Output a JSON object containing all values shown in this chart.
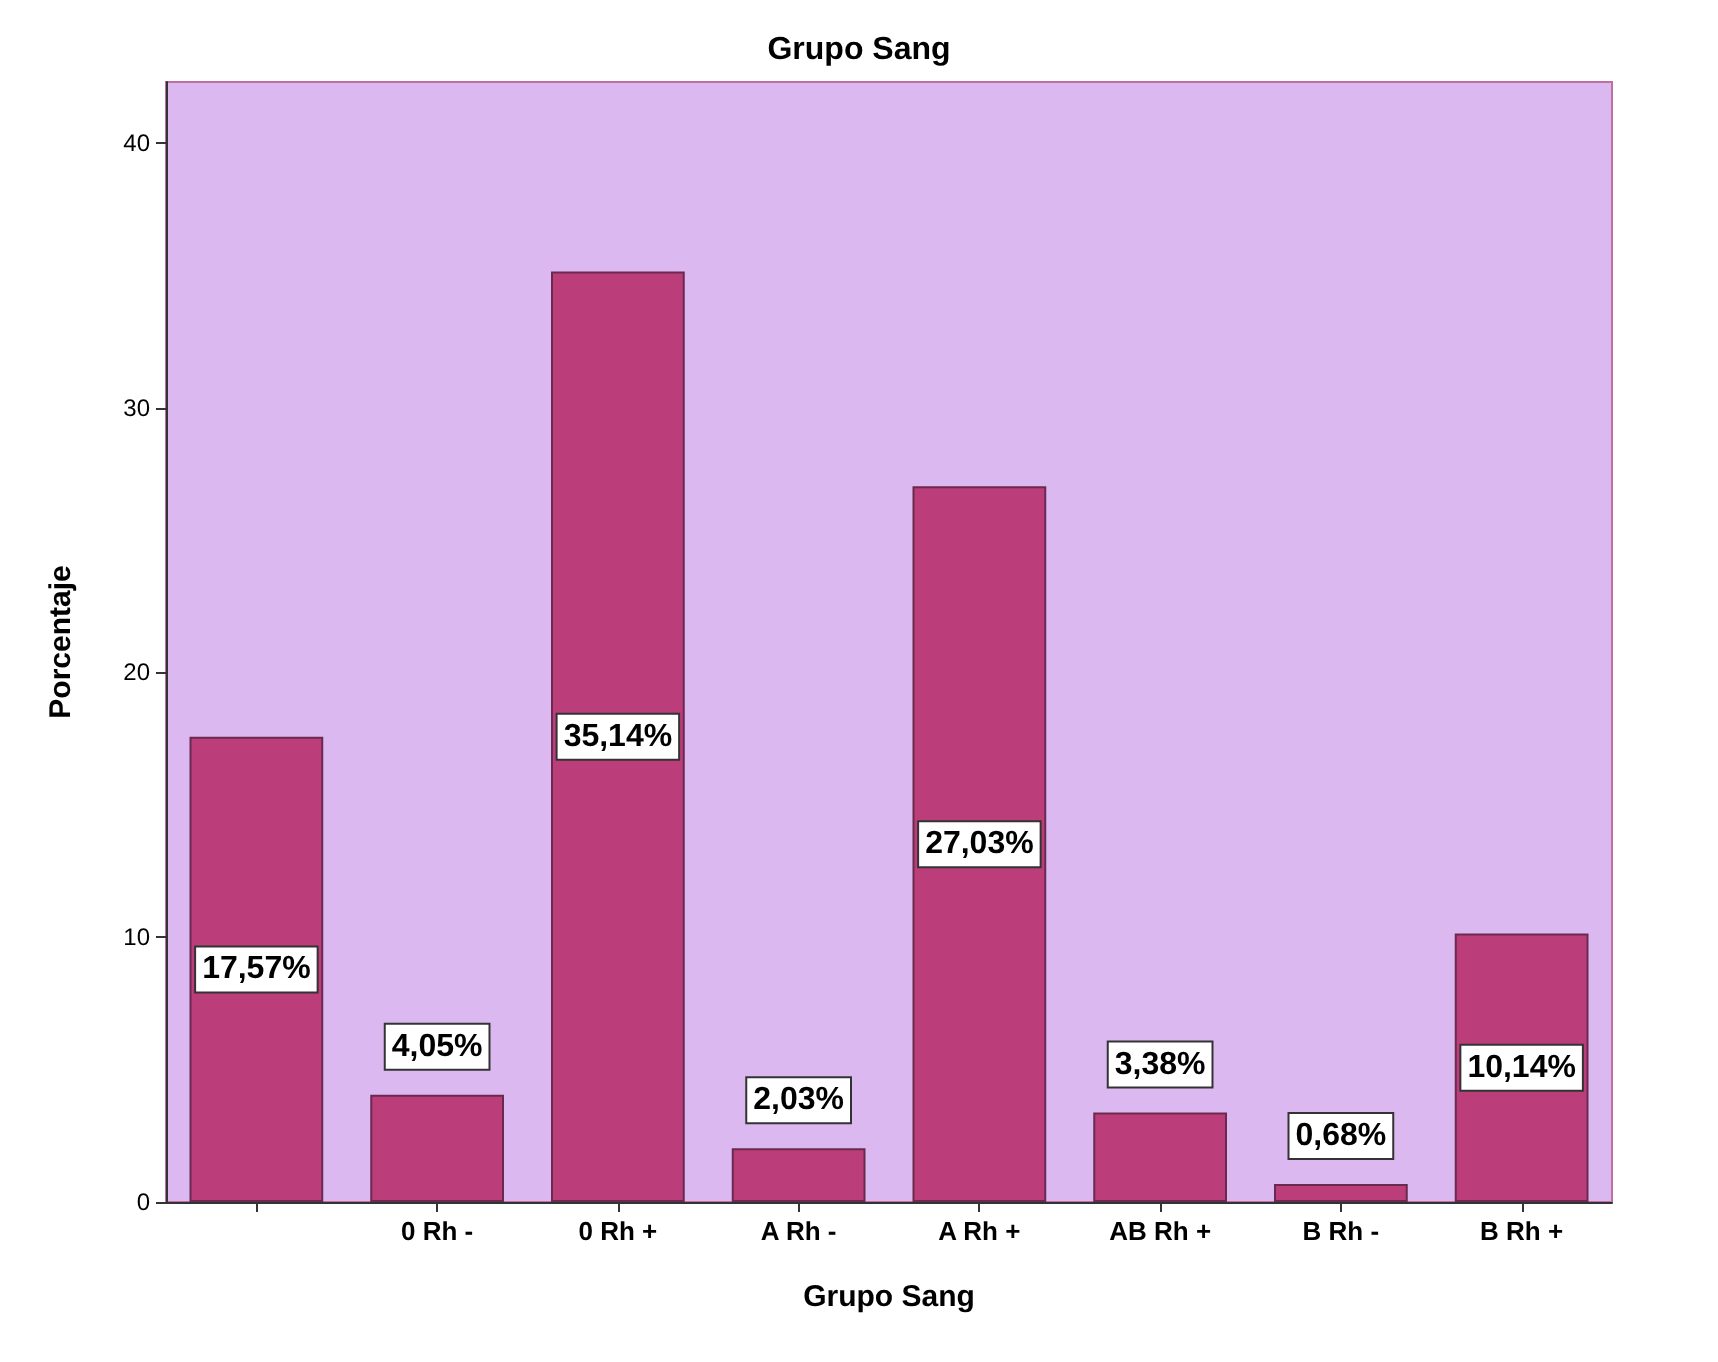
{
  "chart_data": {
    "type": "bar",
    "title": "Grupo Sang",
    "xlabel": "Grupo Sang",
    "ylabel": "Porcentaje",
    "categories": [
      null,
      "0 Rh -",
      "0 Rh +",
      "A Rh -",
      "A Rh +",
      "AB Rh +",
      "B Rh -",
      "B Rh +"
    ],
    "values": [
      17.57,
      4.05,
      35.14,
      2.03,
      27.03,
      3.38,
      0.68,
      10.14
    ],
    "value_labels": [
      "17,57%",
      "4,05%",
      "35,14%",
      "2,03%",
      "27,03%",
      "3,38%",
      "0,68%",
      "10,14%"
    ],
    "color": "#bb3d7a",
    "ylim": [
      0,
      42.3
    ],
    "yticks": [
      0,
      10,
      20,
      30,
      40
    ],
    "grid": false
  }
}
